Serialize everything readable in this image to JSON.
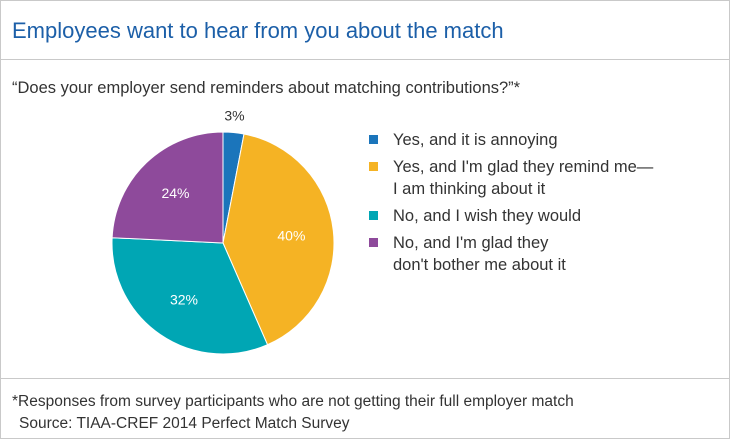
{
  "title": "Employees want to hear from you about the match",
  "question": "“Does your employer send reminders about matching contributions?”*",
  "footnote": "*Responses from survey participants who are not getting their full employer match",
  "source": "Source: TIAA-CREF 2014 Perfect Match Survey",
  "chart_data": {
    "type": "pie",
    "title": "",
    "slices": [
      {
        "label": "Yes, and it is annoying",
        "value": 3,
        "value_label": "3%",
        "color": "#1b75bb",
        "label_color": "#333333"
      },
      {
        "label": "Yes, and I'm glad they remind me—\nI am thinking about it",
        "value": 40,
        "value_label": "40%",
        "color": "#f5b324",
        "label_color": "#ffffff"
      },
      {
        "label": "No, and I wish they would",
        "value": 32,
        "value_label": "32%",
        "color": "#00a6b4",
        "label_color": "#ffffff"
      },
      {
        "label": "No, and I'm glad they\ndon't bother me about it",
        "value": 24,
        "value_label": "24%",
        "color": "#8e4a9b",
        "label_color": "#ffffff"
      }
    ],
    "legend_position": "right"
  }
}
